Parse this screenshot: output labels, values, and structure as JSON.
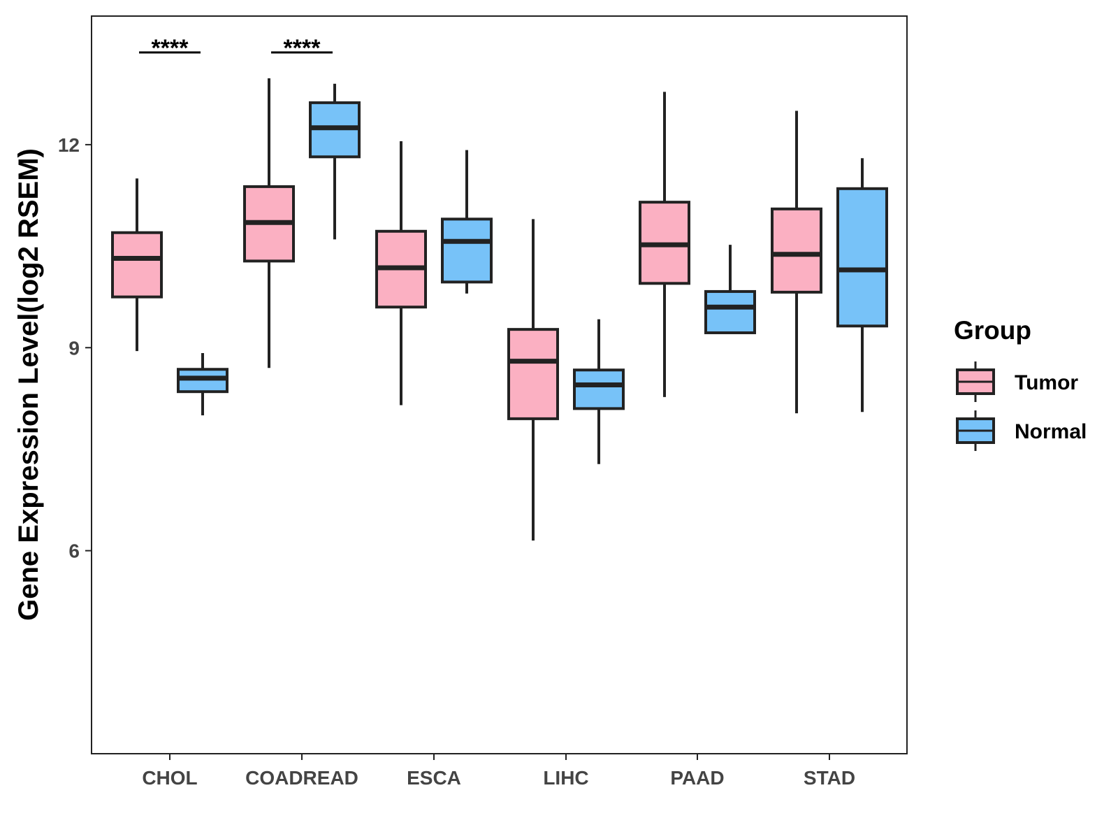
{
  "chart_data": {
    "type": "boxplot",
    "title": "",
    "xlabel": "",
    "ylabel": "Gene Expression Level(log2 RSEM)",
    "ylim": [
      3.0,
      13.9
    ],
    "yticks": [
      6,
      9,
      12
    ],
    "grid": false,
    "categories": [
      "CHOL",
      "COADREAD",
      "ESCA",
      "LIHC",
      "PAAD",
      "STAD"
    ],
    "legend": {
      "title": "Group",
      "position": "right",
      "entries": [
        "Tumor",
        "Normal"
      ]
    },
    "colors": {
      "Tumor": "#FBB0C2",
      "Normal": "#77C2F8",
      "stroke": "#222222"
    },
    "series": [
      {
        "name": "Tumor",
        "boxes": [
          {
            "category": "CHOL",
            "whisker_low": 8.95,
            "q1": 9.75,
            "median": 10.32,
            "q3": 10.7,
            "whisker_high": 11.5
          },
          {
            "category": "COADREAD",
            "whisker_low": 8.7,
            "q1": 10.28,
            "median": 10.85,
            "q3": 11.38,
            "whisker_high": 12.98
          },
          {
            "category": "ESCA",
            "whisker_low": 8.15,
            "q1": 9.6,
            "median": 10.18,
            "q3": 10.72,
            "whisker_high": 12.05
          },
          {
            "category": "LIHC",
            "whisker_low": 6.15,
            "q1": 7.95,
            "median": 8.8,
            "q3": 9.27,
            "whisker_high": 10.9
          },
          {
            "category": "PAAD",
            "whisker_low": 8.27,
            "q1": 9.95,
            "median": 10.52,
            "q3": 11.15,
            "whisker_high": 12.78
          },
          {
            "category": "STAD",
            "whisker_low": 8.03,
            "q1": 9.82,
            "median": 10.38,
            "q3": 11.05,
            "whisker_high": 12.5
          }
        ]
      },
      {
        "name": "Normal",
        "boxes": [
          {
            "category": "CHOL",
            "whisker_low": 8.0,
            "q1": 8.35,
            "median": 8.55,
            "q3": 8.68,
            "whisker_high": 8.92
          },
          {
            "category": "COADREAD",
            "whisker_low": 10.6,
            "q1": 11.82,
            "median": 12.25,
            "q3": 12.62,
            "whisker_high": 12.9
          },
          {
            "category": "ESCA",
            "whisker_low": 9.8,
            "q1": 9.97,
            "median": 10.57,
            "q3": 10.9,
            "whisker_high": 11.92
          },
          {
            "category": "LIHC",
            "whisker_low": 7.28,
            "q1": 8.1,
            "median": 8.45,
            "q3": 8.67,
            "whisker_high": 9.42
          },
          {
            "category": "PAAD",
            "whisker_low": 9.22,
            "q1": 9.22,
            "median": 9.6,
            "q3": 9.83,
            "whisker_high": 10.52
          },
          {
            "category": "STAD",
            "whisker_low": 8.05,
            "q1": 9.32,
            "median": 10.15,
            "q3": 11.35,
            "whisker_high": 11.8
          }
        ]
      }
    ],
    "annotations": [
      {
        "category": "CHOL",
        "text": "****"
      },
      {
        "category": "COADREAD",
        "text": "****"
      }
    ]
  }
}
